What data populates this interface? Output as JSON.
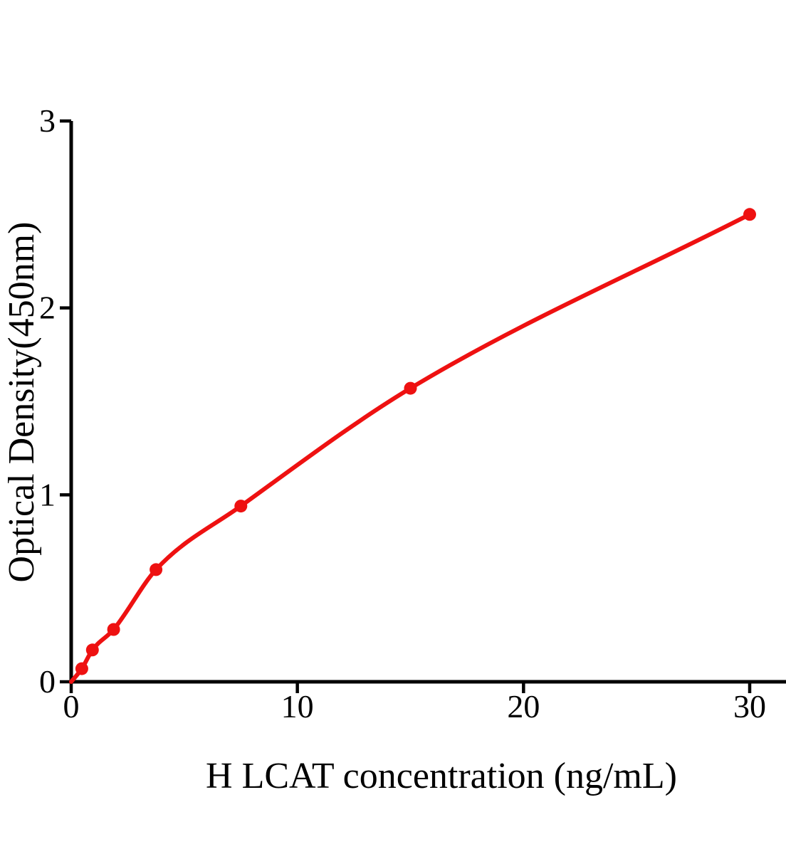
{
  "chart_data": {
    "type": "scatter",
    "title": "",
    "xlabel": "H LCAT concentration (ng/mL)",
    "ylabel": "Optical Density(450nm)",
    "x": [
      0.469,
      0.938,
      1.875,
      3.75,
      7.5,
      15,
      30
    ],
    "y": [
      0.07,
      0.17,
      0.28,
      0.6,
      0.94,
      1.57,
      2.5
    ],
    "curve_origin": [
      0,
      0
    ],
    "x_ticks": [
      0,
      10,
      20,
      30
    ],
    "y_ticks": [
      0,
      1,
      2,
      3
    ],
    "xlim": [
      0,
      31.6
    ],
    "ylim": [
      0,
      3
    ],
    "grid": false,
    "legend": null,
    "colors": {
      "curve": "#ee1111",
      "axis": "#000000",
      "text": "#000000",
      "background": "#ffffff"
    }
  }
}
